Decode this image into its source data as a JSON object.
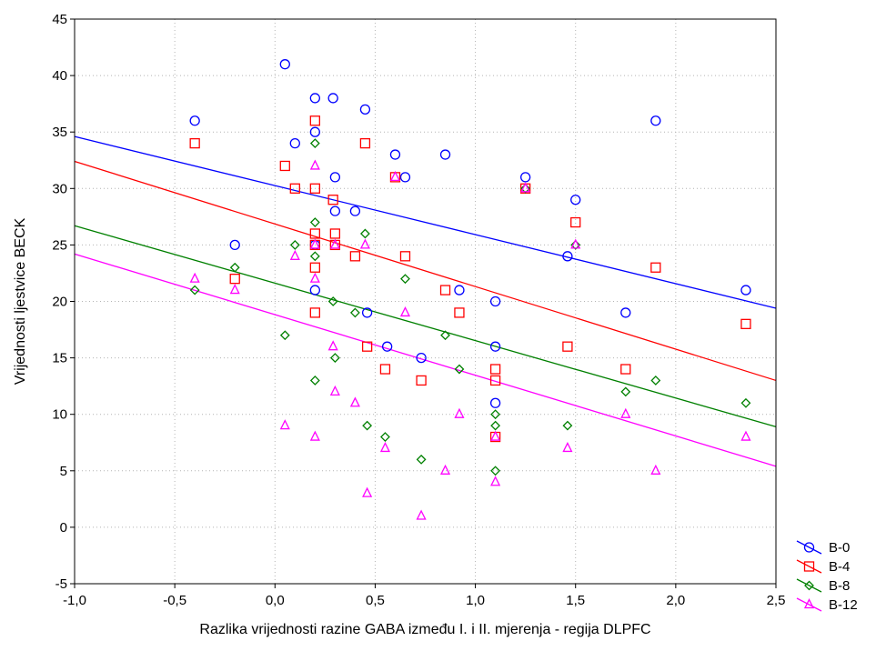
{
  "chart_data": {
    "type": "scatter",
    "xlabel": "Razlika vrijednosti razine GABA između I. i II. mjerenja - regija DLPFC",
    "ylabel": "Vrijednosti ljestvice BECK",
    "xlim": [
      -1.0,
      2.5
    ],
    "ylim": [
      -5,
      45
    ],
    "xticks": [
      "-1,0",
      "-0,5",
      "0,0",
      "0,5",
      "1,0",
      "1,5",
      "2,0",
      "2,5"
    ],
    "xtick_values": [
      -1.0,
      -0.5,
      0.0,
      0.5,
      1.0,
      1.5,
      2.0,
      2.5
    ],
    "yticks": [
      "-5",
      "0",
      "5",
      "10",
      "15",
      "20",
      "25",
      "30",
      "35",
      "40",
      "45"
    ],
    "ytick_values": [
      -5,
      0,
      5,
      10,
      15,
      20,
      25,
      30,
      35,
      40,
      45
    ],
    "grid": true,
    "legend_position": "right",
    "series": [
      {
        "name": "B-0",
        "color": "#0000ff",
        "marker": "circle",
        "points": [
          [
            -0.4,
            36
          ],
          [
            -0.2,
            25
          ],
          [
            0.05,
            41
          ],
          [
            0.1,
            34
          ],
          [
            0.2,
            38
          ],
          [
            0.2,
            35
          ],
          [
            0.2,
            25
          ],
          [
            0.2,
            21
          ],
          [
            0.29,
            38
          ],
          [
            0.3,
            31
          ],
          [
            0.3,
            28
          ],
          [
            0.4,
            28
          ],
          [
            0.45,
            37
          ],
          [
            0.46,
            19
          ],
          [
            0.56,
            16
          ],
          [
            0.6,
            33
          ],
          [
            0.65,
            31
          ],
          [
            0.73,
            15
          ],
          [
            0.85,
            33
          ],
          [
            0.92,
            21
          ],
          [
            1.1,
            20
          ],
          [
            1.1,
            16
          ],
          [
            1.1,
            11
          ],
          [
            1.25,
            31
          ],
          [
            1.46,
            24
          ],
          [
            1.5,
            29
          ],
          [
            1.75,
            19
          ],
          [
            1.9,
            36
          ],
          [
            2.35,
            21
          ]
        ],
        "regression": [
          [
            -1.0,
            34.6
          ],
          [
            2.5,
            19.4
          ]
        ]
      },
      {
        "name": "B-4",
        "color": "#ff0000",
        "marker": "square",
        "points": [
          [
            -0.4,
            34
          ],
          [
            -0.2,
            22
          ],
          [
            0.05,
            32
          ],
          [
            0.1,
            30
          ],
          [
            0.2,
            36
          ],
          [
            0.2,
            30
          ],
          [
            0.2,
            26
          ],
          [
            0.2,
            25
          ],
          [
            0.2,
            23
          ],
          [
            0.2,
            19
          ],
          [
            0.29,
            29
          ],
          [
            0.3,
            26
          ],
          [
            0.3,
            25
          ],
          [
            0.4,
            24
          ],
          [
            0.45,
            34
          ],
          [
            0.46,
            16
          ],
          [
            0.55,
            14
          ],
          [
            0.6,
            31
          ],
          [
            0.65,
            24
          ],
          [
            0.73,
            13
          ],
          [
            0.85,
            21
          ],
          [
            0.92,
            19
          ],
          [
            1.1,
            14
          ],
          [
            1.1,
            13
          ],
          [
            1.1,
            8
          ],
          [
            1.25,
            30
          ],
          [
            1.46,
            16
          ],
          [
            1.5,
            27
          ],
          [
            1.75,
            14
          ],
          [
            1.9,
            23
          ],
          [
            2.35,
            18
          ]
        ],
        "regression": [
          [
            -1.0,
            32.4
          ],
          [
            2.5,
            13.0
          ]
        ]
      },
      {
        "name": "B-8",
        "color": "#008000",
        "marker": "diamond",
        "points": [
          [
            -0.4,
            21
          ],
          [
            -0.2,
            23
          ],
          [
            0.05,
            17
          ],
          [
            0.1,
            25
          ],
          [
            0.2,
            34
          ],
          [
            0.2,
            27
          ],
          [
            0.2,
            24
          ],
          [
            0.2,
            13
          ],
          [
            0.29,
            20
          ],
          [
            0.3,
            15
          ],
          [
            0.4,
            19
          ],
          [
            0.45,
            26
          ],
          [
            0.46,
            9
          ],
          [
            0.55,
            8
          ],
          [
            0.65,
            22
          ],
          [
            0.73,
            6
          ],
          [
            0.85,
            17
          ],
          [
            0.92,
            14
          ],
          [
            1.1,
            10
          ],
          [
            1.1,
            9
          ],
          [
            1.1,
            5
          ],
          [
            1.25,
            30
          ],
          [
            1.46,
            9
          ],
          [
            1.5,
            25
          ],
          [
            1.75,
            12
          ],
          [
            1.9,
            13
          ],
          [
            2.35,
            11
          ]
        ],
        "regression": [
          [
            -1.0,
            26.7
          ],
          [
            2.5,
            8.9
          ]
        ]
      },
      {
        "name": "B-12",
        "color": "#ff00ff",
        "marker": "triangle",
        "points": [
          [
            -0.4,
            22
          ],
          [
            -0.2,
            21
          ],
          [
            0.05,
            9
          ],
          [
            0.1,
            24
          ],
          [
            0.2,
            32
          ],
          [
            0.2,
            25
          ],
          [
            0.2,
            22
          ],
          [
            0.2,
            8
          ],
          [
            0.29,
            16
          ],
          [
            0.3,
            12
          ],
          [
            0.3,
            25
          ],
          [
            0.4,
            11
          ],
          [
            0.45,
            25
          ],
          [
            0.46,
            3
          ],
          [
            0.55,
            7
          ],
          [
            0.6,
            31
          ],
          [
            0.65,
            19
          ],
          [
            0.73,
            1
          ],
          [
            0.85,
            5
          ],
          [
            0.92,
            10
          ],
          [
            1.1,
            8
          ],
          [
            1.1,
            4
          ],
          [
            1.25,
            30
          ],
          [
            1.46,
            7
          ],
          [
            1.5,
            25
          ],
          [
            1.75,
            10
          ],
          [
            1.9,
            5
          ],
          [
            2.35,
            8
          ]
        ],
        "regression": [
          [
            -1.0,
            24.2
          ],
          [
            2.5,
            5.4
          ]
        ]
      }
    ]
  }
}
